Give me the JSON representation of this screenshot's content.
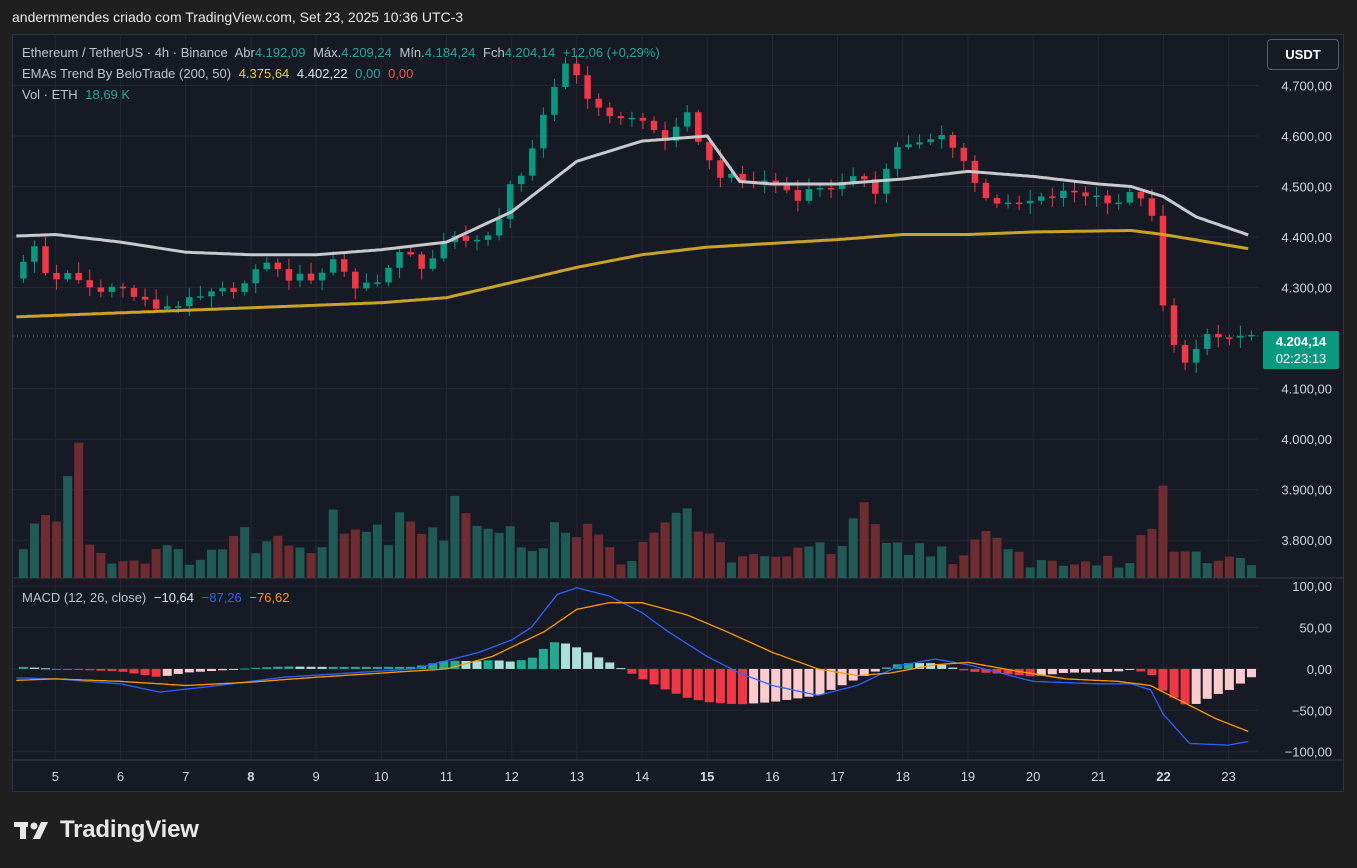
{
  "header": {
    "caption": "andermmendes criado com TradingView.com, Set 23, 2025 10:36 UTC-3"
  },
  "legend": {
    "symbol": "Ethereum / TetherUS · 4h · Binance",
    "open_label": "Abr",
    "open": "4.192,09",
    "high_label": "Máx.",
    "high": "4.209,24",
    "low_label": "Mín.",
    "low": "4.184,24",
    "close_label": "Fch",
    "close": "4.204,14",
    "change": "+12,06 (+0,29%)",
    "ema_name": "EMAs Trend By BeloTrade (200, 50)",
    "ema200": "4.375,64",
    "ema50": "4.402,22",
    "ema_up": "0,00",
    "ema_down": "0,00",
    "vol_name": "Vol · ETH",
    "vol": "18,69 K",
    "macd_name": "MACD (12, 26, close)",
    "macd_hist": "−10,64",
    "macd_line": "−87,26",
    "macd_signal": "−76,62"
  },
  "currency_button": "USDT",
  "last_price": {
    "price": "4.204,14",
    "countdown": "02:23:13"
  },
  "brand": "TradingView",
  "colors": {
    "up": "#089981",
    "down": "#f23645",
    "ema50": "#c8c9cc",
    "ema200": "#c9a227",
    "macd": "#2962ff",
    "signal": "#ff9800"
  },
  "chart_data": [
    {
      "type": "candlestick",
      "x_ticks": [
        {
          "label": "5",
          "day": 5
        },
        {
          "label": "6",
          "day": 6
        },
        {
          "label": "7",
          "day": 7
        },
        {
          "label": "8",
          "day": 8,
          "bold": true
        },
        {
          "label": "9",
          "day": 9
        },
        {
          "label": "10",
          "day": 10
        },
        {
          "label": "11",
          "day": 11
        },
        {
          "label": "12",
          "day": 12
        },
        {
          "label": "13",
          "day": 13
        },
        {
          "label": "14",
          "day": 14
        },
        {
          "label": "15",
          "day": 15,
          "bold": true
        },
        {
          "label": "16",
          "day": 16
        },
        {
          "label": "17",
          "day": 17
        },
        {
          "label": "18",
          "day": 18
        },
        {
          "label": "19",
          "day": 19
        },
        {
          "label": "20",
          "day": 20
        },
        {
          "label": "21",
          "day": 21
        },
        {
          "label": "22",
          "day": 22,
          "bold": true
        },
        {
          "label": "23",
          "day": 23
        }
      ],
      "y_ticks": [
        "4.700,00",
        "4.600,00",
        "4.500,00",
        "4.400,00",
        "4.300,00",
        "4.100,00",
        "4.000,00",
        "3.900,00",
        "3.800,00"
      ],
      "y_tick_values": [
        4700,
        4600,
        4500,
        4400,
        4300,
        4100,
        4000,
        3900,
        3800
      ],
      "ylim": [
        3725,
        4800
      ],
      "close_anchors": [
        [
          4.0,
          4320
        ],
        [
          4.1,
          4280
        ],
        [
          4.3,
          4310
        ],
        [
          4.5,
          4350
        ],
        [
          4.7,
          4390
        ],
        [
          4.9,
          4300
        ],
        [
          5.2,
          4330
        ],
        [
          5.5,
          4300
        ],
        [
          6.0,
          4300
        ],
        [
          6.5,
          4260
        ],
        [
          7.0,
          4270
        ],
        [
          7.5,
          4290
        ],
        [
          8.0,
          4310
        ],
        [
          8.2,
          4360
        ],
        [
          8.5,
          4320
        ],
        [
          9.0,
          4320
        ],
        [
          9.3,
          4360
        ],
        [
          9.6,
          4300
        ],
        [
          10.0,
          4320
        ],
        [
          10.4,
          4380
        ],
        [
          10.6,
          4340
        ],
        [
          10.9,
          4360
        ],
        [
          11.0,
          4400
        ],
        [
          11.3,
          4400
        ],
        [
          11.6,
          4390
        ],
        [
          11.9,
          4450
        ],
        [
          12.0,
          4530
        ],
        [
          12.2,
          4520
        ],
        [
          12.5,
          4640
        ],
        [
          12.8,
          4750
        ],
        [
          13.0,
          4720
        ],
        [
          13.3,
          4650
        ],
        [
          13.6,
          4640
        ],
        [
          14.0,
          4630
        ],
        [
          14.4,
          4590
        ],
        [
          14.7,
          4640
        ],
        [
          15.1,
          4530
        ],
        [
          15.5,
          4510
        ],
        [
          16.0,
          4510
        ],
        [
          16.4,
          4480
        ],
        [
          16.7,
          4500
        ],
        [
          17.0,
          4500
        ],
        [
          17.4,
          4520
        ],
        [
          17.6,
          4490
        ],
        [
          17.9,
          4580
        ],
        [
          18.2,
          4580
        ],
        [
          18.6,
          4600
        ],
        [
          18.9,
          4570
        ],
        [
          19.0,
          4520
        ],
        [
          19.3,
          4480
        ],
        [
          19.6,
          4460
        ],
        [
          20.0,
          4470
        ],
        [
          20.3,
          4480
        ],
        [
          20.6,
          4490
        ],
        [
          21.0,
          4480
        ],
        [
          21.3,
          4470
        ],
        [
          21.6,
          4490
        ],
        [
          21.8,
          4460
        ],
        [
          21.95,
          4290
        ],
        [
          22.1,
          4190
        ],
        [
          22.4,
          4150
        ],
        [
          22.6,
          4200
        ],
        [
          23.0,
          4200
        ],
        [
          23.35,
          4204
        ]
      ],
      "ema50_anchors": [
        [
          4.0,
          4400
        ],
        [
          5.0,
          4405
        ],
        [
          6.0,
          4390
        ],
        [
          7.0,
          4370
        ],
        [
          8.0,
          4365
        ],
        [
          9.0,
          4365
        ],
        [
          10.0,
          4375
        ],
        [
          11.0,
          4390
        ],
        [
          12.0,
          4450
        ],
        [
          13.0,
          4550
        ],
        [
          14.0,
          4590
        ],
        [
          15.0,
          4600
        ],
        [
          15.5,
          4510
        ],
        [
          16.0,
          4505
        ],
        [
          17.0,
          4505
        ],
        [
          18.0,
          4515
        ],
        [
          19.0,
          4530
        ],
        [
          20.0,
          4520
        ],
        [
          21.0,
          4505
        ],
        [
          21.5,
          4500
        ],
        [
          22.0,
          4480
        ],
        [
          22.5,
          4440
        ],
        [
          23.35,
          4402
        ]
      ],
      "ema200_anchors": [
        [
          4.0,
          4240
        ],
        [
          6.0,
          4250
        ],
        [
          7.0,
          4255
        ],
        [
          9.0,
          4265
        ],
        [
          10.0,
          4270
        ],
        [
          11.0,
          4280
        ],
        [
          12.0,
          4310
        ],
        [
          13.0,
          4340
        ],
        [
          14.0,
          4365
        ],
        [
          15.0,
          4380
        ],
        [
          17.0,
          4395
        ],
        [
          18.0,
          4405
        ],
        [
          19.0,
          4405
        ],
        [
          20.0,
          4410
        ],
        [
          21.0,
          4412
        ],
        [
          21.5,
          4413
        ],
        [
          22.0,
          4405
        ],
        [
          23.35,
          4376
        ]
      ],
      "last_price": 4204.14
    },
    {
      "type": "bar",
      "name": "Vol · ETH",
      "volume_anchors": [
        [
          4.0,
          30
        ],
        [
          4.6,
          40
        ],
        [
          5.3,
          120
        ],
        [
          5.6,
          25
        ],
        [
          6.0,
          15
        ],
        [
          6.5,
          25
        ],
        [
          7.0,
          20
        ],
        [
          7.6,
          30
        ],
        [
          8.0,
          40
        ],
        [
          8.3,
          35
        ],
        [
          8.6,
          30
        ],
        [
          9.0,
          40
        ],
        [
          9.3,
          70
        ],
        [
          9.7,
          45
        ],
        [
          10.0,
          45
        ],
        [
          10.4,
          75
        ],
        [
          10.6,
          55
        ],
        [
          11.0,
          45
        ],
        [
          11.3,
          80
        ],
        [
          11.6,
          45
        ],
        [
          12.0,
          35
        ],
        [
          12.5,
          40
        ],
        [
          12.8,
          60
        ],
        [
          13.2,
          40
        ],
        [
          13.6,
          20
        ],
        [
          14.0,
          25
        ],
        [
          14.3,
          40
        ],
        [
          14.7,
          65
        ],
        [
          15.0,
          40
        ],
        [
          15.4,
          20
        ],
        [
          16.0,
          15
        ],
        [
          16.4,
          40
        ],
        [
          16.7,
          25
        ],
        [
          17.0,
          25
        ],
        [
          17.4,
          55
        ],
        [
          17.7,
          30
        ],
        [
          18.0,
          25
        ],
        [
          18.4,
          30
        ],
        [
          18.9,
          20
        ],
        [
          19.3,
          35
        ],
        [
          19.6,
          25
        ],
        [
          20.0,
          15
        ],
        [
          20.5,
          15
        ],
        [
          21.0,
          15
        ],
        [
          21.5,
          15
        ],
        [
          21.8,
          50
        ],
        [
          22.0,
          60
        ],
        [
          22.2,
          30
        ],
        [
          22.6,
          25
        ],
        [
          23.0,
          20
        ],
        [
          23.35,
          10
        ]
      ]
    },
    {
      "type": "histogram",
      "name": "MACD",
      "y_ticks": [
        "100,00",
        "50,00",
        "0,00",
        "−50,00",
        "−100,00"
      ],
      "y_tick_values": [
        100,
        50,
        0,
        -50,
        -100
      ],
      "ylim": [
        -110,
        105
      ],
      "macd_anchors": [
        [
          4.0,
          -10
        ],
        [
          5.0,
          -12
        ],
        [
          6.0,
          -18
        ],
        [
          6.6,
          -28
        ],
        [
          7.5,
          -20
        ],
        [
          8.5,
          -10
        ],
        [
          9.5,
          -5
        ],
        [
          10.5,
          0
        ],
        [
          11.0,
          10
        ],
        [
          11.5,
          20
        ],
        [
          12.0,
          35
        ],
        [
          12.3,
          50
        ],
        [
          12.7,
          90
        ],
        [
          13.0,
          98
        ],
        [
          13.5,
          88
        ],
        [
          14.0,
          68
        ],
        [
          14.4,
          45
        ],
        [
          15.0,
          15
        ],
        [
          15.5,
          -5
        ],
        [
          16.0,
          -20
        ],
        [
          16.7,
          -32
        ],
        [
          17.3,
          -20
        ],
        [
          17.7,
          -5
        ],
        [
          18.0,
          5
        ],
        [
          18.5,
          12
        ],
        [
          19.0,
          5
        ],
        [
          19.5,
          -5
        ],
        [
          20.0,
          -15
        ],
        [
          21.0,
          -18
        ],
        [
          21.5,
          -18
        ],
        [
          21.8,
          -25
        ],
        [
          22.0,
          -55
        ],
        [
          22.4,
          -90
        ],
        [
          23.0,
          -92
        ],
        [
          23.35,
          -87
        ]
      ],
      "signal_anchors": [
        [
          4.0,
          -15
        ],
        [
          5.0,
          -12
        ],
        [
          6.0,
          -15
        ],
        [
          7.0,
          -20
        ],
        [
          8.0,
          -16
        ],
        [
          9.0,
          -10
        ],
        [
          10.0,
          -5
        ],
        [
          11.0,
          0
        ],
        [
          11.7,
          15
        ],
        [
          12.5,
          45
        ],
        [
          13.0,
          72
        ],
        [
          13.5,
          80
        ],
        [
          14.0,
          80
        ],
        [
          14.7,
          65
        ],
        [
          15.3,
          45
        ],
        [
          16.0,
          20
        ],
        [
          16.7,
          0
        ],
        [
          17.3,
          -8
        ],
        [
          17.8,
          -5
        ],
        [
          18.5,
          5
        ],
        [
          19.0,
          8
        ],
        [
          19.7,
          -2
        ],
        [
          20.5,
          -12
        ],
        [
          21.3,
          -15
        ],
        [
          21.8,
          -20
        ],
        [
          22.3,
          -40
        ],
        [
          22.8,
          -60
        ],
        [
          23.35,
          -77
        ]
      ]
    }
  ]
}
